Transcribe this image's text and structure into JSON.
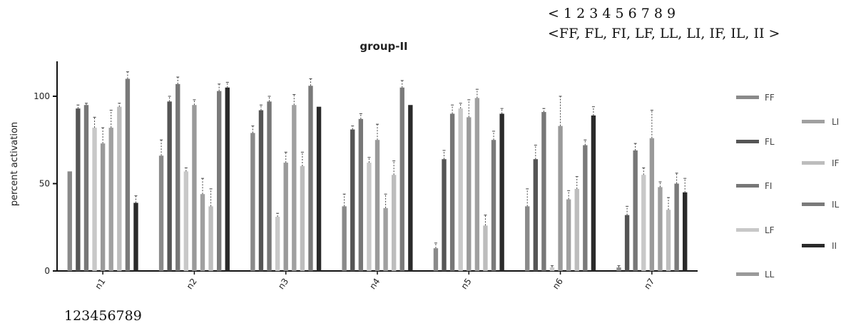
{
  "header": {
    "numbers_line": "< 1    2    3    4    5    6   7   8   9",
    "groups_line": "<FF, FL, FI, LF, LL, LI, IF, IL, II >"
  },
  "footer": {
    "numbers": "123456789"
  },
  "chart_data": {
    "type": "bar",
    "title": "group-II",
    "ylabel": "percent activation",
    "xlabel": "",
    "ylim": [
      0,
      120
    ],
    "yticks": [
      0,
      50,
      100
    ],
    "categories": [
      "n1",
      "n2",
      "n3",
      "n4",
      "n5",
      "n6",
      "n7"
    ],
    "legend_position": "right",
    "series": [
      {
        "name": "FF",
        "color": "#8a8a8a",
        "values": [
          57,
          66,
          79,
          37,
          13,
          37,
          2
        ],
        "errors": [
          0,
          9,
          4,
          7,
          3,
          10,
          1
        ]
      },
      {
        "name": "FL",
        "color": "#555555",
        "values": [
          93,
          97,
          92,
          81,
          64,
          64,
          32
        ],
        "errors": [
          2,
          3,
          3,
          2,
          5,
          8,
          5
        ]
      },
      {
        "name": "FI",
        "color": "#777777",
        "values": [
          95,
          107,
          97,
          87,
          90,
          91,
          69
        ],
        "errors": [
          1,
          4,
          3,
          3,
          5,
          2,
          4
        ]
      },
      {
        "name": "LF",
        "color": "#c8c8c8",
        "values": [
          82,
          57,
          31,
          62,
          93,
          2,
          55
        ],
        "errors": [
          6,
          2,
          2,
          3,
          3,
          1,
          4
        ]
      },
      {
        "name": "LL",
        "color": "#9a9a9a",
        "values": [
          73,
          95,
          62,
          75,
          88,
          83,
          76
        ],
        "errors": [
          9,
          3,
          6,
          9,
          10,
          17,
          16
        ]
      },
      {
        "name": "LI",
        "color": "#a0a0a0",
        "values": [
          82,
          44,
          95,
          36,
          99,
          41,
          48
        ],
        "errors": [
          10,
          9,
          6,
          8,
          5,
          5,
          3
        ]
      },
      {
        "name": "IF",
        "color": "#bdbdbd",
        "values": [
          94,
          37,
          60,
          55,
          26,
          47,
          35
        ],
        "errors": [
          2,
          10,
          8,
          8,
          6,
          7,
          7
        ]
      },
      {
        "name": "IL",
        "color": "#7a7a7a",
        "values": [
          110,
          103,
          106,
          105,
          75,
          72,
          50
        ],
        "errors": [
          4,
          4,
          4,
          4,
          5,
          3,
          6
        ]
      },
      {
        "name": "II",
        "color": "#2a2a2a",
        "values": [
          39,
          105,
          94,
          95,
          90,
          89,
          45
        ],
        "errors": [
          4,
          3,
          0,
          0,
          3,
          5,
          8
        ]
      }
    ]
  }
}
